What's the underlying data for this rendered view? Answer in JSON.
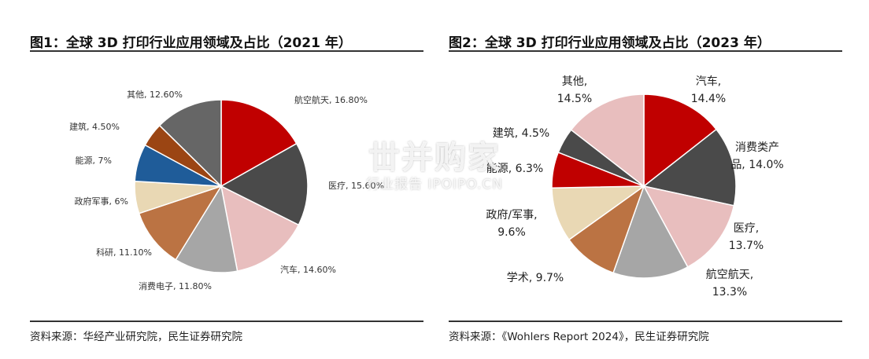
{
  "watermark": {
    "main": "丗并购家",
    "sub": "行业报告 IPOIPO.CN"
  },
  "chart_data": [
    {
      "type": "pie",
      "title": "图1：全球 3D 打印行业应用领域及占比（2021 年）",
      "source": "资料来源：华经产业研究院，民生证券研究院",
      "slices": [
        {
          "label": "航空航天, 16.80%",
          "name": "航空航天",
          "value": 16.8,
          "color": "#c00000"
        },
        {
          "label": "医疗, 15.60%",
          "name": "医疗",
          "value": 15.6,
          "color": "#4a4a4a"
        },
        {
          "label": "汽车, 14.60%",
          "name": "汽车",
          "value": 14.6,
          "color": "#e8bebe"
        },
        {
          "label": "消费电子, 11.80%",
          "name": "消费电子",
          "value": 11.8,
          "color": "#a6a6a6"
        },
        {
          "label": "科研, 11.10%",
          "name": "科研",
          "value": 11.1,
          "color": "#bb7343"
        },
        {
          "label": "政府军事, 6%",
          "name": "政府军事",
          "value": 6.0,
          "color": "#e9d8b4"
        },
        {
          "label": "能源, 7%",
          "name": "能源",
          "value": 7.0,
          "color": "#1f5c99"
        },
        {
          "label": "建筑, 4.50%",
          "name": "建筑",
          "value": 4.5,
          "color": "#9b4513"
        },
        {
          "label": "其他, 12.60%",
          "name": "其他",
          "value": 12.6,
          "color": "#666666"
        }
      ]
    },
    {
      "type": "pie",
      "title": "图2：全球 3D 打印行业应用领域及占比（2023 年）",
      "source": "资料来源：《Wohlers Report 2024》，民生证券研究院",
      "slices": [
        {
          "label": [
            "汽车,",
            "14.4%"
          ],
          "name": "汽车",
          "value": 14.4,
          "color": "#c00000"
        },
        {
          "label": [
            "消费类产",
            "品, 14.0%"
          ],
          "name": "消费类产品",
          "value": 14.0,
          "color": "#4a4a4a"
        },
        {
          "label": [
            "医疗,",
            "13.7%"
          ],
          "name": "医疗",
          "value": 13.7,
          "color": "#e8bebe"
        },
        {
          "label": [
            "航空航天,",
            "13.3%"
          ],
          "name": "航空航天",
          "value": 13.3,
          "color": "#a6a6a6"
        },
        {
          "label": [
            "学术, 9.7%"
          ],
          "name": "学术",
          "value": 9.7,
          "color": "#bb7343"
        },
        {
          "label": [
            "政府/军事,",
            "9.6%"
          ],
          "name": "政府/军事",
          "value": 9.6,
          "color": "#e9d8b4"
        },
        {
          "label": [
            "能源, 6.3%"
          ],
          "name": "能源",
          "value": 6.3,
          "color": "#c00000"
        },
        {
          "label": [
            "建筑, 4.5%"
          ],
          "name": "建筑",
          "value": 4.5,
          "color": "#4a4a4a"
        },
        {
          "label": [
            "其他,",
            "14.5%"
          ],
          "name": "其他",
          "value": 14.5,
          "color": "#e8bebe"
        }
      ]
    }
  ]
}
